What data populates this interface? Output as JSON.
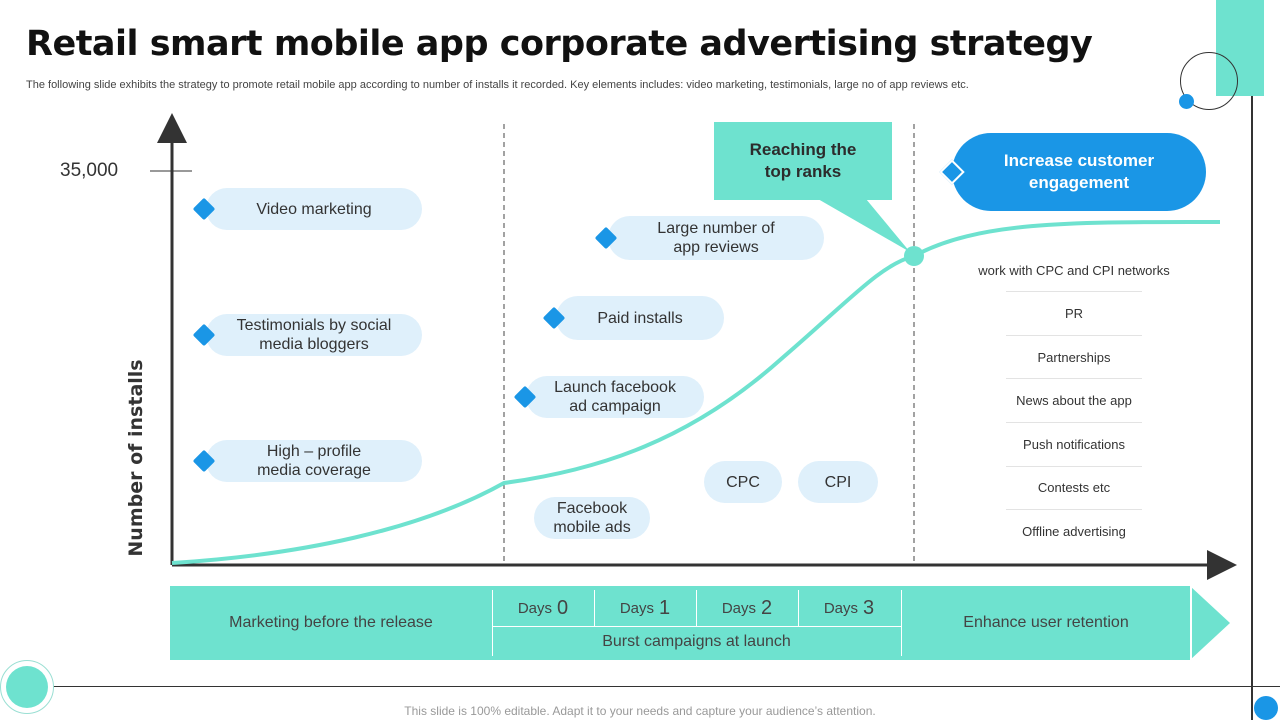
{
  "header": {
    "title": "Retail smart mobile app corporate advertising strategy",
    "subtitle": "The following slide exhibits the strategy to promote retail mobile app according to number of installs it recorded. Key elements includes: video marketing, testimonials, large no of app reviews etc."
  },
  "axis": {
    "y_label": "Number of installs",
    "y_tick": "35,000"
  },
  "pre_release_tactics": [
    {
      "label": "Video marketing"
    },
    {
      "label": "Testimonials by social media bloggers"
    },
    {
      "label": "High – profile media coverage"
    }
  ],
  "launch_tactics": {
    "reviews": "Large number of app reviews",
    "paid": "Paid installs",
    "facebook_campaign": "Launch facebook ad campaign",
    "facebook_ads": "Facebook mobile ads",
    "cpc": "CPC",
    "cpi": "CPI"
  },
  "callouts": {
    "top_ranks": "Reaching the top ranks",
    "engagement": "Increase customer engagement"
  },
  "engagement_list": [
    "work with CPC and CPI networks",
    "PR",
    "Partnerships",
    "News about the app",
    "Push notifications",
    "Contests etc",
    "Offline advertising"
  ],
  "timeline": {
    "phase1": "Marketing before the release",
    "days_word": "Days",
    "days": [
      "0",
      "1",
      "2",
      "3"
    ],
    "burst": "Burst campaigns at launch",
    "phase3": "Enhance user retention"
  },
  "footer": "This slide is 100% editable. Adapt it to your needs and capture your audience’s attention.",
  "colors": {
    "accent_teal": "#6ee2cf",
    "accent_blue": "#1a96e6",
    "pill_bg": "#dff0fb",
    "curve": "#6ee2cf"
  }
}
